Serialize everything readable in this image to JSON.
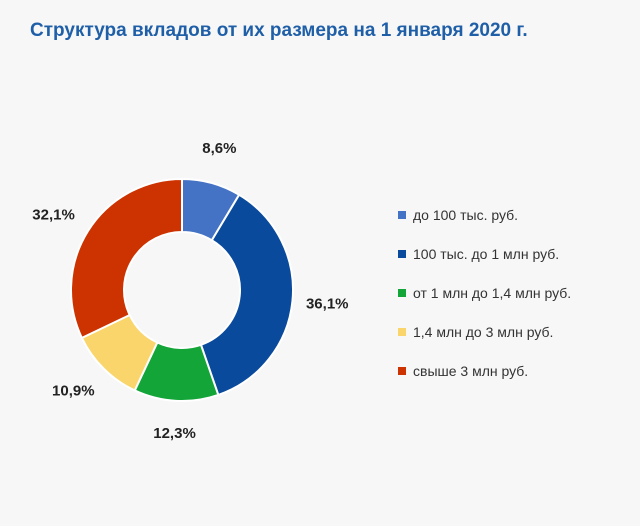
{
  "chart_data": {
    "type": "pie",
    "variant": "donut",
    "title": "Структура вкладов от их размера на 1 января 2020 г.",
    "categories": [
      "до 100 тыс. руб.",
      "100 тыс. до 1 млн руб.",
      "от 1 млн до 1,4 млн руб.",
      "1,4 млн до 3 млн руб.",
      "свыше 3 млн руб."
    ],
    "values": [
      8.6,
      36.1,
      12.3,
      10.9,
      32.1
    ],
    "value_labels": [
      "8,6%",
      "36,1%",
      "12,3%",
      "10,9%",
      "32,1%"
    ],
    "colors": [
      "#4472c4",
      "#0a4a9c",
      "#13a538",
      "#f9d56b",
      "#cc3300"
    ],
    "legend_position": "right"
  }
}
